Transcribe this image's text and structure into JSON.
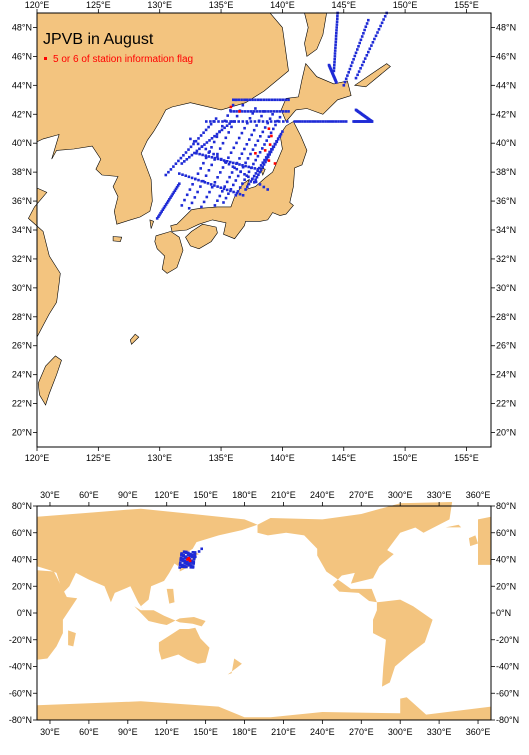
{
  "top_map": {
    "title": "JPVB in August",
    "legend_label": "5 or 6 of station information flag",
    "lon_range": [
      120,
      157
    ],
    "lat_range": [
      19,
      49
    ],
    "lon_ticks": [
      120,
      125,
      130,
      135,
      140,
      145,
      150,
      155
    ],
    "lon_tick_labels": [
      "120°E",
      "125°E",
      "130°E",
      "135°E",
      "140°E",
      "145°E",
      "150°E",
      "155°E"
    ],
    "lat_ticks": [
      20,
      22,
      24,
      26,
      28,
      30,
      32,
      34,
      36,
      38,
      40,
      42,
      44,
      46,
      48
    ],
    "lat_tick_labels": [
      "20°N",
      "22°N",
      "24°N",
      "26°N",
      "28°N",
      "30°N",
      "32°N",
      "34°N",
      "36°N",
      "38°N",
      "40°N",
      "42°N",
      "44°N",
      "46°N",
      "48°N"
    ]
  },
  "bottom_map": {
    "lon_range": [
      20,
      370
    ],
    "lat_range": [
      -80,
      80
    ],
    "lon_ticks": [
      30,
      60,
      90,
      120,
      150,
      180,
      210,
      240,
      270,
      300,
      330,
      360
    ],
    "lon_tick_labels": [
      "30°E",
      "60°E",
      "90°E",
      "120°E",
      "150°E",
      "180°E",
      "210°E",
      "240°E",
      "270°E",
      "300°E",
      "330°E",
      "360°E"
    ],
    "lat_ticks": [
      80,
      60,
      40,
      20,
      0,
      -20,
      -40,
      -60,
      -80
    ],
    "lat_tick_labels": [
      "80°N",
      "60°N",
      "40°N",
      "20°N",
      "0°N",
      "-20°N",
      "-40°N",
      "-60°N",
      "-80°N"
    ]
  },
  "colors": {
    "land": "#f3c47f",
    "station": "#1f2bd6",
    "flagged": "#ff0000",
    "coast": "#000000"
  }
}
